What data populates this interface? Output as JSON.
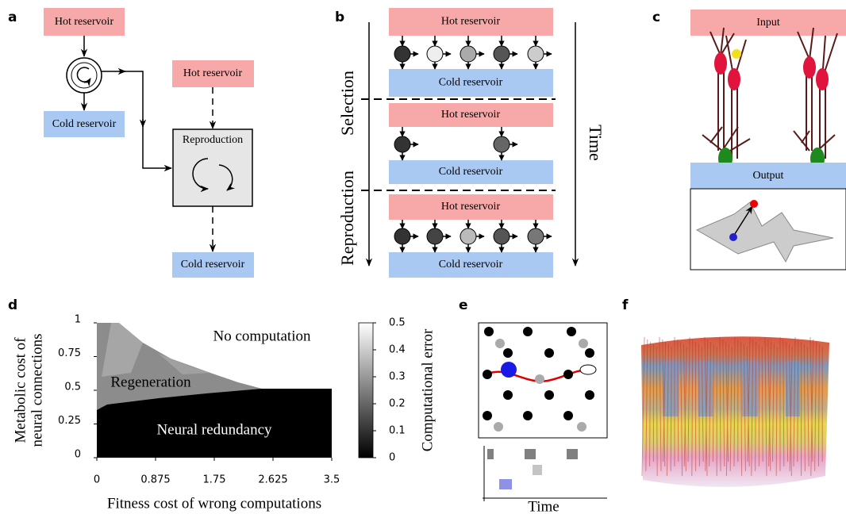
{
  "panels": {
    "a": {
      "label": "a",
      "hot_top": "Hot reservoir",
      "cold_left": "Cold reservoir",
      "hot_right": "Hot reservoir",
      "reproduction": "Reproduction",
      "cold_bottom": "Cold reservoir"
    },
    "b": {
      "label": "b",
      "phases": [
        "Selection",
        "Reproduction"
      ],
      "time": "Time",
      "rows": [
        {
          "hot": "Hot reservoir",
          "cold": "Cold reservoir"
        },
        {
          "hot": "Hot reservoir",
          "cold": "Cold reservoir"
        },
        {
          "hot": "Hot reservoir",
          "cold": "Cold reservoir"
        }
      ]
    },
    "c": {
      "label": "c",
      "input": "Input",
      "output": "Output"
    },
    "d": {
      "label": "d",
      "ylabel": [
        "Metabolic cost of",
        "neural connections"
      ],
      "xlabel": "Fitness cost of wrong computations",
      "xlim": [
        0,
        3.5
      ],
      "xticks": [
        0,
        0.875,
        1.75,
        2.625,
        3.5
      ],
      "ylim": [
        0,
        1
      ],
      "yticks": [
        0,
        0.25,
        0.5,
        0.75,
        1
      ],
      "colorbar_label": "Computational error",
      "colorbar_lim": [
        0,
        0.5
      ],
      "colorbar_ticks": [
        0,
        0.1,
        0.2,
        0.3,
        0.4,
        0.5
      ],
      "regions": [
        "No computation",
        "Regeneration",
        "Neural redundancy"
      ]
    },
    "e": {
      "label": "e",
      "xlabel": "Time"
    },
    "f": {
      "label": "f"
    }
  }
}
